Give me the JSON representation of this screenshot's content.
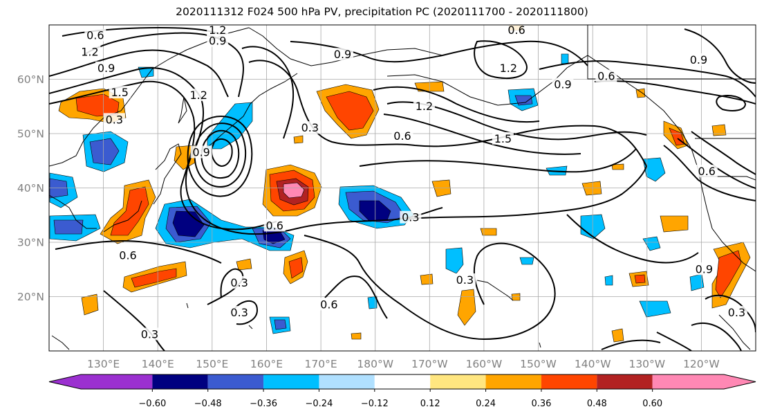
{
  "title": "2020111312 F024 500 hPa PV, precipitation PC (2020111700 - 2020111800)",
  "map": {
    "lat_range": [
      10,
      70
    ],
    "lon_range_east": [
      120,
      250
    ],
    "lat_ticks": [
      {
        "lat": 20,
        "label": "20°N"
      },
      {
        "lat": 30,
        "label": "30°N"
      },
      {
        "lat": 40,
        "label": "40°N"
      },
      {
        "lat": 50,
        "label": "50°N"
      },
      {
        "lat": 60,
        "label": "60°N"
      }
    ],
    "lon_ticks": [
      {
        "lon": 130,
        "label": "130°E"
      },
      {
        "lon": 140,
        "label": "140°E"
      },
      {
        "lon": 150,
        "label": "150°E"
      },
      {
        "lon": 160,
        "label": "160°E"
      },
      {
        "lon": 170,
        "label": "170°E"
      },
      {
        "lon": 180,
        "label": "180°W"
      },
      {
        "lon": 190,
        "label": "170°W"
      },
      {
        "lon": 200,
        "label": "160°W"
      },
      {
        "lon": 210,
        "label": "150°W"
      },
      {
        "lon": 220,
        "label": "140°W"
      },
      {
        "lon": 230,
        "label": "130°W"
      },
      {
        "lon": 240,
        "label": "120°W"
      }
    ],
    "grid": true,
    "contour_labels": [
      {
        "text": "0.6",
        "lon": 128.5,
        "lat": 68
      },
      {
        "text": "1.2",
        "lon": 151,
        "lat": 69
      },
      {
        "text": "0.9",
        "lon": 151,
        "lat": 67
      },
      {
        "text": "1.2",
        "lon": 127.5,
        "lat": 65
      },
      {
        "text": "0.9",
        "lon": 130.5,
        "lat": 62
      },
      {
        "text": "1.5",
        "lon": 133,
        "lat": 57.5
      },
      {
        "text": "0.3",
        "lon": 132,
        "lat": 52.5
      },
      {
        "text": "1.2",
        "lon": 147.5,
        "lat": 57
      },
      {
        "text": "0.9",
        "lon": 148,
        "lat": 46.5
      },
      {
        "text": "0.3",
        "lon": 168,
        "lat": 51
      },
      {
        "text": "0.9",
        "lon": 174,
        "lat": 64.5
      },
      {
        "text": "0.6",
        "lon": 206,
        "lat": 69
      },
      {
        "text": "1.2",
        "lon": 204.5,
        "lat": 62
      },
      {
        "text": "0.9",
        "lon": 214.5,
        "lat": 59
      },
      {
        "text": "0.6",
        "lon": 222.5,
        "lat": 60.5
      },
      {
        "text": "0.9",
        "lon": 239.5,
        "lat": 63.5
      },
      {
        "text": "1.2",
        "lon": 189,
        "lat": 55
      },
      {
        "text": "0.6",
        "lon": 185,
        "lat": 49.5
      },
      {
        "text": "1.5",
        "lon": 203.5,
        "lat": 49
      },
      {
        "text": "0.3",
        "lon": 186.5,
        "lat": 34.5
      },
      {
        "text": "0.6",
        "lon": 161.5,
        "lat": 33
      },
      {
        "text": "0.6",
        "lon": 134.5,
        "lat": 27.5
      },
      {
        "text": "0.3",
        "lon": 155,
        "lat": 22.5
      },
      {
        "text": "0.3",
        "lon": 155,
        "lat": 17
      },
      {
        "text": "0.6",
        "lon": 171.5,
        "lat": 18.5
      },
      {
        "text": "0.3",
        "lon": 196.5,
        "lat": 23
      },
      {
        "text": "0.3",
        "lon": 138.5,
        "lat": 13
      },
      {
        "text": "0.3",
        "lon": 246.5,
        "lat": 17
      },
      {
        "text": "0.6",
        "lon": 241,
        "lat": 43
      },
      {
        "text": "0.9",
        "lon": 240.5,
        "lat": 25
      }
    ]
  },
  "colorbar": {
    "levels": [
      "−0.60",
      "−0.48",
      "−0.36",
      "−0.24",
      "−0.12",
      "0.12",
      "0.24",
      "0.36",
      "0.48",
      "0.60"
    ],
    "colors": [
      "#9b30d0",
      "#000080",
      "#3b5bd0",
      "#00bfff",
      "#b0e0ff",
      "#ffffff",
      "#ffe680",
      "#ffa500",
      "#ff4500",
      "#b22222",
      "#ff88b4"
    ]
  }
}
